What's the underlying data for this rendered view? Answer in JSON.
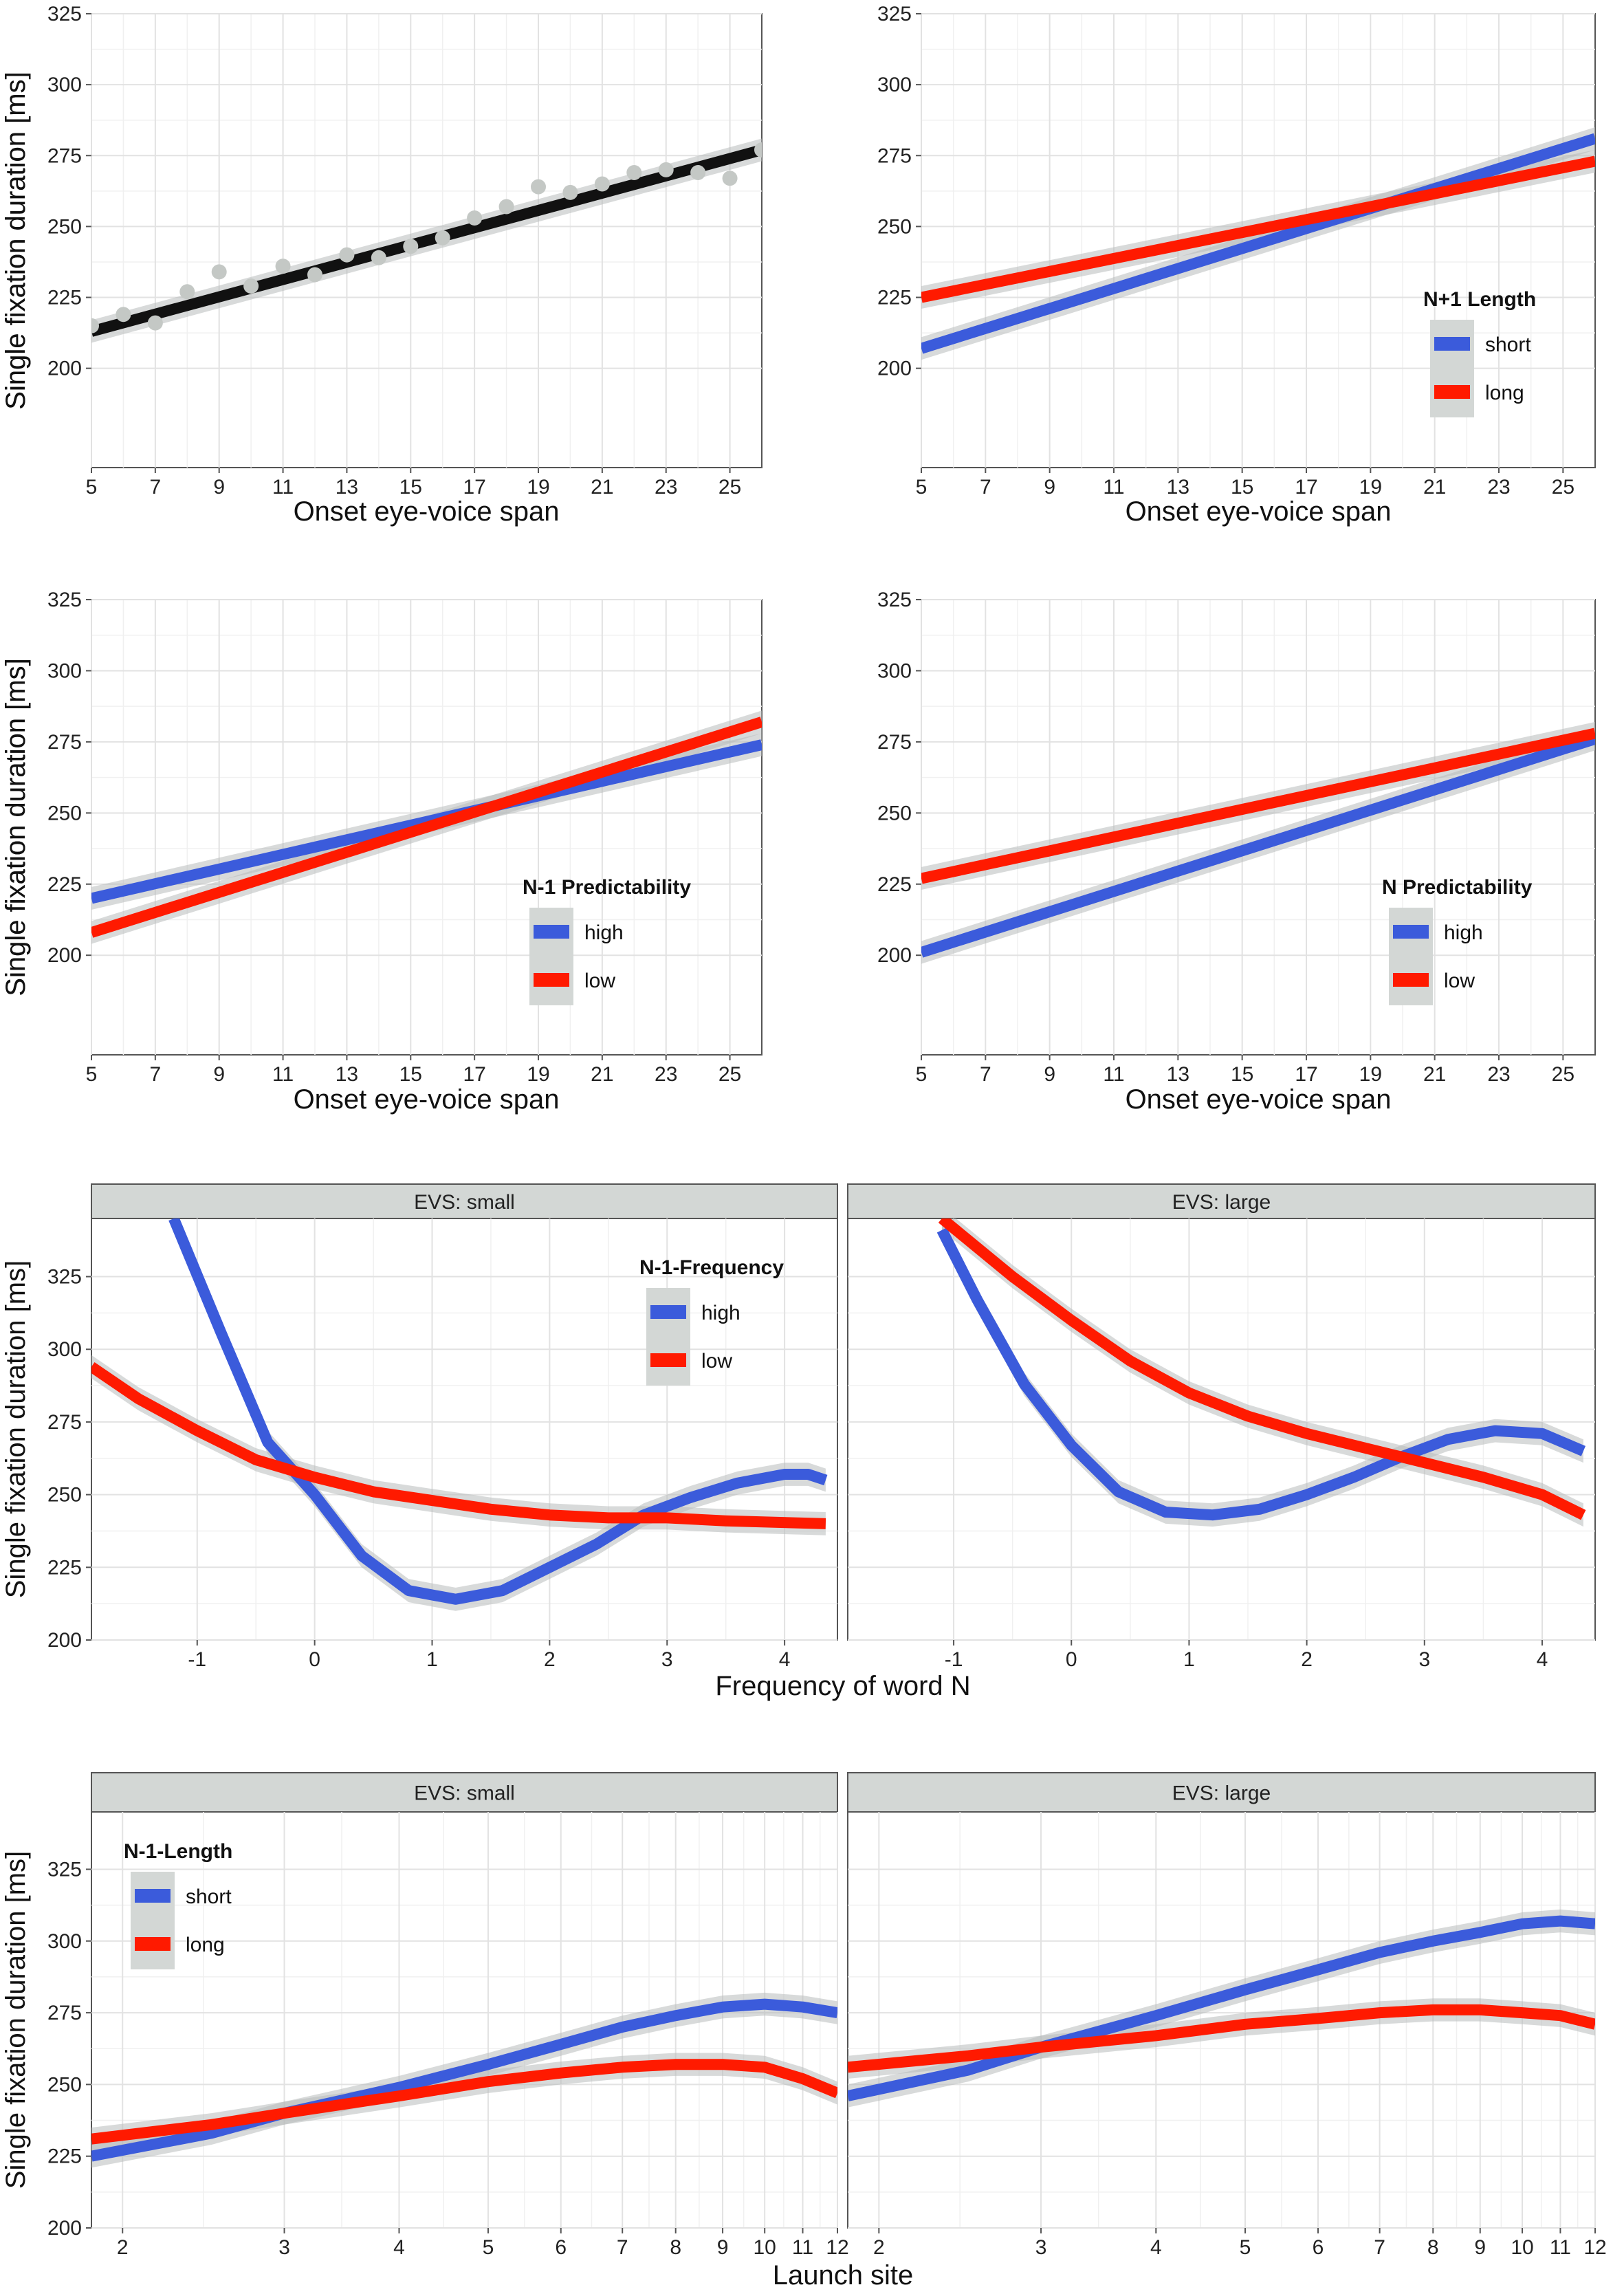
{
  "figure": {
    "type": "multi-panel"
  },
  "chart_data": [
    {
      "id": "p1",
      "type": "scatter",
      "xlabel": "Onset eye-voice span",
      "ylabel": "Single fixation duration [ms]",
      "xlim": [
        5,
        26
      ],
      "ylim": [
        165,
        325
      ],
      "xticks": [
        "5",
        "7",
        "9",
        "11",
        "13",
        "15",
        "17",
        "19",
        "21",
        "23",
        "25"
      ],
      "yticks": [
        "200",
        "225",
        "250",
        "275",
        "300",
        "325"
      ],
      "points": [
        [
          5,
          215
        ],
        [
          6,
          219
        ],
        [
          7,
          216
        ],
        [
          8,
          227
        ],
        [
          9,
          234
        ],
        [
          10,
          229
        ],
        [
          11,
          236
        ],
        [
          12,
          233
        ],
        [
          13,
          240
        ],
        [
          14,
          239
        ],
        [
          15,
          243
        ],
        [
          16,
          246
        ],
        [
          17,
          253
        ],
        [
          18,
          257
        ],
        [
          19,
          264
        ],
        [
          20,
          262
        ],
        [
          21,
          265
        ],
        [
          22,
          269
        ],
        [
          23,
          270
        ],
        [
          24,
          269
        ],
        [
          25,
          267
        ],
        [
          26,
          277
        ]
      ],
      "series": [
        {
          "name": "fit",
          "color": "#111111",
          "points": [
            [
              5,
              213
            ],
            [
              26,
              277
            ]
          ]
        }
      ]
    },
    {
      "id": "p2",
      "type": "line",
      "xlabel": "Onset eye-voice span",
      "ylabel": "Single fixation duration [ms]",
      "xlim": [
        5,
        26
      ],
      "ylim": [
        165,
        325
      ],
      "xticks": [
        "5",
        "7",
        "9",
        "11",
        "13",
        "15",
        "17",
        "19",
        "21",
        "23",
        "25"
      ],
      "yticks": [
        "200",
        "225",
        "250",
        "275",
        "300",
        "325"
      ],
      "legend": {
        "title": "N+1 Length",
        "position": "inside-right",
        "items": [
          "short",
          "long"
        ]
      },
      "series": [
        {
          "name": "short",
          "color": "#3b5bdb",
          "points": [
            [
              5,
              207
            ],
            [
              26,
              281
            ]
          ]
        },
        {
          "name": "long",
          "color": "#ff1a00",
          "points": [
            [
              5,
              225
            ],
            [
              26,
              273
            ]
          ]
        }
      ]
    },
    {
      "id": "p3",
      "type": "line",
      "xlabel": "Onset eye-voice span",
      "ylabel": "Single fixation duration [ms]",
      "xlim": [
        5,
        26
      ],
      "ylim": [
        165,
        325
      ],
      "xticks": [
        "5",
        "7",
        "9",
        "11",
        "13",
        "15",
        "17",
        "19",
        "21",
        "23",
        "25"
      ],
      "yticks": [
        "200",
        "225",
        "250",
        "275",
        "300",
        "325"
      ],
      "legend": {
        "title": "N-1 Predictability",
        "position": "inside-right",
        "items": [
          "high",
          "low"
        ]
      },
      "series": [
        {
          "name": "high",
          "color": "#3b5bdb",
          "points": [
            [
              5,
              220
            ],
            [
              26,
              274
            ]
          ]
        },
        {
          "name": "low",
          "color": "#ff1a00",
          "points": [
            [
              5,
              208
            ],
            [
              26,
              282
            ]
          ]
        }
      ]
    },
    {
      "id": "p4",
      "type": "line",
      "xlabel": "Onset eye-voice span",
      "ylabel": "Single fixation duration [ms]",
      "xlim": [
        5,
        26
      ],
      "ylim": [
        165,
        325
      ],
      "xticks": [
        "5",
        "7",
        "9",
        "11",
        "13",
        "15",
        "17",
        "19",
        "21",
        "23",
        "25"
      ],
      "yticks": [
        "200",
        "225",
        "250",
        "275",
        "300",
        "325"
      ],
      "legend": {
        "title": "N Predictability",
        "position": "inside-right",
        "items": [
          "high",
          "low"
        ]
      },
      "series": [
        {
          "name": "high",
          "color": "#3b5bdb",
          "points": [
            [
              5,
              201
            ],
            [
              26,
              276
            ]
          ]
        },
        {
          "name": "low",
          "color": "#ff1a00",
          "points": [
            [
              5,
              227
            ],
            [
              26,
              278
            ]
          ]
        }
      ]
    },
    {
      "id": "p5",
      "type": "line",
      "facet": "EVS: small",
      "xlabel": "Frequency of word N",
      "ylabel": "Single fixation duration [ms]",
      "xlim": [
        -1.9,
        4.45
      ],
      "ylim": [
        200,
        345
      ],
      "xticks": [
        "-1",
        "0",
        "1",
        "2",
        "3",
        "4"
      ],
      "yticks": [
        "200",
        "225",
        "250",
        "275",
        "300",
        "325"
      ],
      "legend": {
        "title": "N-1-Frequency",
        "position": "inside-right",
        "items": [
          "high",
          "low"
        ]
      },
      "series": [
        {
          "name": "high",
          "color": "#3b5bdb",
          "points": [
            [
              -1.2,
              345
            ],
            [
              -0.8,
              306
            ],
            [
              -0.4,
              268
            ],
            [
              0,
              250
            ],
            [
              0.4,
              229
            ],
            [
              0.8,
              217
            ],
            [
              1.2,
              214
            ],
            [
              1.6,
              217
            ],
            [
              2,
              225
            ],
            [
              2.4,
              233
            ],
            [
              2.8,
              243
            ],
            [
              3.2,
              249
            ],
            [
              3.6,
              254
            ],
            [
              4,
              257
            ],
            [
              4.2,
              257
            ],
            [
              4.35,
              255
            ]
          ]
        },
        {
          "name": "low",
          "color": "#ff1a00",
          "points": [
            [
              -1.9,
              294
            ],
            [
              -1.5,
              283
            ],
            [
              -1,
              272
            ],
            [
              -0.5,
              262
            ],
            [
              0,
              256
            ],
            [
              0.5,
              251
            ],
            [
              1,
              248
            ],
            [
              1.5,
              245
            ],
            [
              2,
              243
            ],
            [
              2.5,
              242
            ],
            [
              3,
              242
            ],
            [
              3.5,
              241
            ],
            [
              4.35,
              240
            ]
          ]
        }
      ]
    },
    {
      "id": "p6",
      "type": "line",
      "facet": "EVS: large",
      "xlabel": "Frequency of word N",
      "ylabel": "Single fixation duration [ms]",
      "xlim": [
        -1.9,
        4.45
      ],
      "ylim": [
        200,
        345
      ],
      "xticks": [
        "-1",
        "0",
        "1",
        "2",
        "3",
        "4"
      ],
      "yticks": [
        "200",
        "225",
        "250",
        "275",
        "300",
        "325"
      ],
      "series": [
        {
          "name": "high",
          "color": "#3b5bdb",
          "points": [
            [
              -1.1,
              341
            ],
            [
              -0.8,
              317
            ],
            [
              -0.4,
              288
            ],
            [
              0,
              267
            ],
            [
              0.4,
              251
            ],
            [
              0.8,
              244
            ],
            [
              1.2,
              243
            ],
            [
              1.6,
              245
            ],
            [
              2,
              250
            ],
            [
              2.4,
              256
            ],
            [
              2.8,
              263
            ],
            [
              3.2,
              269
            ],
            [
              3.6,
              272
            ],
            [
              4,
              271
            ],
            [
              4.35,
              265
            ]
          ]
        },
        {
          "name": "low",
          "color": "#ff1a00",
          "points": [
            [
              -1.1,
              345
            ],
            [
              -0.5,
              325
            ],
            [
              0,
              310
            ],
            [
              0.5,
              296
            ],
            [
              1,
              285
            ],
            [
              1.5,
              277
            ],
            [
              2,
              271
            ],
            [
              2.5,
              266
            ],
            [
              3,
              261
            ],
            [
              3.5,
              256
            ],
            [
              4,
              250
            ],
            [
              4.35,
              243
            ]
          ]
        }
      ]
    },
    {
      "id": "p7",
      "type": "line",
      "facet": "EVS: small",
      "xlabel": "Launch site",
      "ylabel": "Single fixation duration [ms]",
      "xscale": "log",
      "xlim": [
        1.85,
        12
      ],
      "ylim": [
        200,
        345
      ],
      "xticks": [
        "2",
        "3",
        "4",
        "5",
        "6",
        "7",
        "8",
        "9",
        "10",
        "11",
        "12"
      ],
      "yticks": [
        "200",
        "225",
        "250",
        "275",
        "300",
        "325"
      ],
      "legend": {
        "title": "N-1-Length",
        "position": "inside-left",
        "items": [
          "short",
          "long"
        ]
      },
      "series": [
        {
          "name": "short",
          "color": "#3b5bdb",
          "points": [
            [
              1.85,
              225
            ],
            [
              2.5,
              233
            ],
            [
              3,
              240
            ],
            [
              4,
              249
            ],
            [
              5,
              257
            ],
            [
              6,
              264
            ],
            [
              7,
              270
            ],
            [
              8,
              274
            ],
            [
              9,
              277
            ],
            [
              10,
              278
            ],
            [
              11,
              277
            ],
            [
              12,
              275
            ]
          ]
        },
        {
          "name": "long",
          "color": "#ff1a00",
          "points": [
            [
              1.85,
              231
            ],
            [
              2.5,
              236
            ],
            [
              3,
              240
            ],
            [
              4,
              246
            ],
            [
              5,
              251
            ],
            [
              6,
              254
            ],
            [
              7,
              256
            ],
            [
              8,
              257
            ],
            [
              9,
              257
            ],
            [
              10,
              256
            ],
            [
              11,
              252
            ],
            [
              12,
              247
            ]
          ]
        }
      ]
    },
    {
      "id": "p8",
      "type": "line",
      "facet": "EVS: large",
      "xlabel": "Launch site",
      "ylabel": "Single fixation duration [ms]",
      "xscale": "log",
      "xlim": [
        1.85,
        12
      ],
      "ylim": [
        200,
        345
      ],
      "xticks": [
        "2",
        "3",
        "4",
        "5",
        "6",
        "7",
        "8",
        "9",
        "10",
        "11",
        "12"
      ],
      "yticks": [
        "200",
        "225",
        "250",
        "275",
        "300",
        "325"
      ],
      "series": [
        {
          "name": "short",
          "color": "#3b5bdb",
          "points": [
            [
              1.85,
              246
            ],
            [
              2.5,
              255
            ],
            [
              3,
              263
            ],
            [
              4,
              274
            ],
            [
              5,
              283
            ],
            [
              6,
              290
            ],
            [
              7,
              296
            ],
            [
              8,
              300
            ],
            [
              9,
              303
            ],
            [
              10,
              306
            ],
            [
              11,
              307
            ],
            [
              12,
              306
            ]
          ]
        },
        {
          "name": "long",
          "color": "#ff1a00",
          "points": [
            [
              1.85,
              256
            ],
            [
              2.5,
              260
            ],
            [
              3,
              263
            ],
            [
              4,
              267
            ],
            [
              5,
              271
            ],
            [
              6,
              273
            ],
            [
              7,
              275
            ],
            [
              8,
              276
            ],
            [
              9,
              276
            ],
            [
              10,
              275
            ],
            [
              11,
              274
            ],
            [
              12,
              271
            ]
          ]
        }
      ]
    }
  ]
}
